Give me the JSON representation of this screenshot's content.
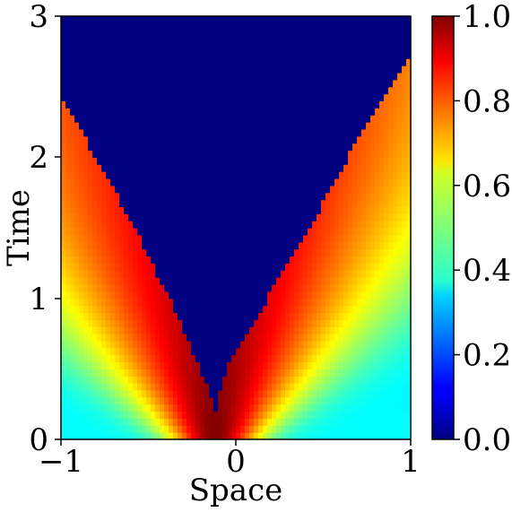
{
  "chart_data": {
    "type": "heatmap",
    "xlabel": "Space",
    "ylabel": "Time",
    "xlim": [
      -1,
      1
    ],
    "ylim": [
      0,
      3
    ],
    "x_ticks": [
      -1,
      0,
      1
    ],
    "y_ticks": [
      0,
      1,
      2,
      3
    ],
    "x_tick_labels": [
      "−1",
      "0",
      "1"
    ],
    "y_tick_labels": [
      "0",
      "1",
      "2",
      "3"
    ],
    "colormap": "jet",
    "colorbar": {
      "range": [
        0.0,
        1.0
      ],
      "ticks": [
        0.0,
        0.2,
        0.4,
        0.6,
        0.8,
        1.0
      ],
      "tick_labels": [
        "0.0",
        "0.2",
        "0.4",
        "0.6",
        "0.8",
        "1.0"
      ]
    },
    "field": {
      "peak_value": 1.0,
      "peak_x": -0.12,
      "zero_region_apex": {
        "x": -0.12,
        "t": 0.2
      },
      "left_front_x_at_times": {
        "t": [
          0.2,
          0.5,
          1.0,
          1.5,
          2.0,
          2.45
        ],
        "x": [
          -0.12,
          -0.2,
          -0.38,
          -0.58,
          -0.8,
          -1.0
        ]
      },
      "right_front_x_at_times": {
        "t": [
          0.2,
          0.5,
          1.0,
          1.5,
          2.0,
          2.7
        ],
        "x": [
          -0.12,
          -0.05,
          0.18,
          0.42,
          0.64,
          1.0
        ]
      }
    },
    "grid": false
  }
}
